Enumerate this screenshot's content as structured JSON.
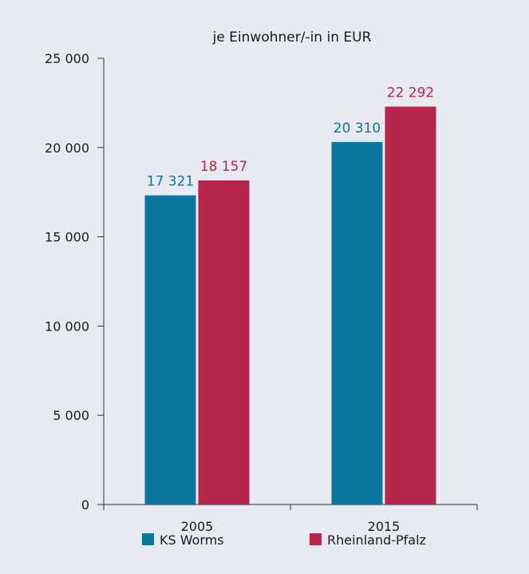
{
  "chart_data": {
    "type": "bar",
    "title": "je Einwohner/-in in EUR",
    "xlabel": "",
    "ylabel": "",
    "categories": [
      "2005",
      "2015"
    ],
    "series": [
      {
        "name": "KS Worms",
        "color": "#0b76a0",
        "values": [
          17321,
          20310
        ],
        "labels": [
          "17 321",
          "20 310"
        ]
      },
      {
        "name": "Rheinland-Pfalz",
        "color": "#b5264a",
        "values": [
          18157,
          22292
        ],
        "labels": [
          "18 157",
          "22 292"
        ]
      }
    ],
    "ylim": [
      0,
      25000
    ],
    "yticks": [
      0,
      5000,
      10000,
      15000,
      20000,
      25000
    ],
    "ytick_labels": [
      "0",
      "5 000",
      "10 000",
      "15 000",
      "20 000",
      "25 000"
    ],
    "grid": false,
    "legend": "bottom"
  },
  "colors": {
    "background": "#e8eaf1",
    "axis": "#333333"
  }
}
